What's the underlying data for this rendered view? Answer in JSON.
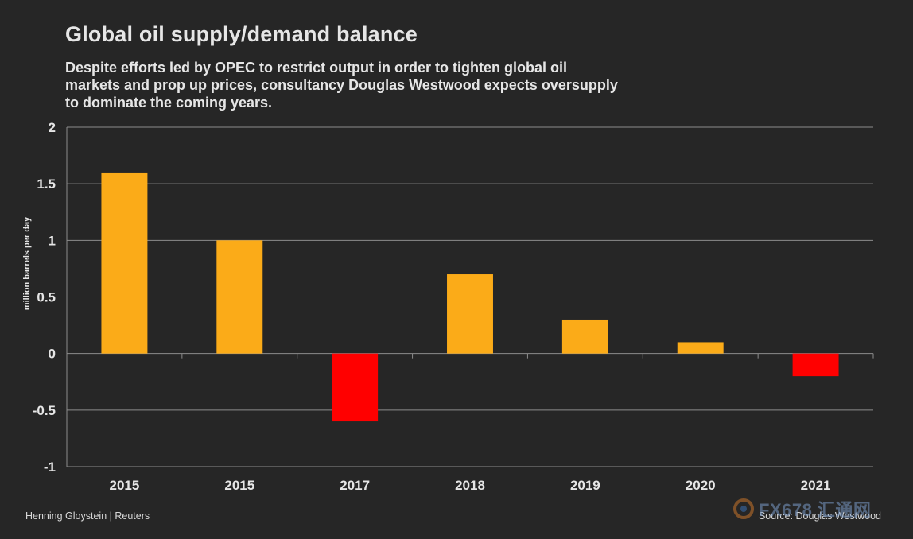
{
  "header": {
    "title": "Global oil supply/demand balance",
    "subtitle": "Despite efforts led by OPEC to restrict output in order to tighten global oil markets and prop up prices, consultancy Douglas Westwood expects oversupply to dominate the coming years."
  },
  "footer": {
    "byline": "Henning Gloystein | Reuters",
    "source": "Source: Douglas Westwood"
  },
  "watermark": {
    "text": "FX678 汇通网"
  },
  "colors": {
    "background": "#262626",
    "positive": "#FBAB18",
    "negative": "#FF0000",
    "grid": "#8c8c8c",
    "text": "#e6e6e6"
  },
  "chart_data": {
    "type": "bar",
    "title": "Global oil supply/demand balance",
    "xlabel": "",
    "ylabel": "million barrels per day",
    "categories": [
      "2015",
      "2015",
      "2017",
      "2018",
      "2019",
      "2020",
      "2021"
    ],
    "values": [
      1.6,
      1.0,
      -0.6,
      0.7,
      0.3,
      0.1,
      -0.2
    ],
    "ylim": [
      -1,
      2
    ],
    "yticks": [
      2,
      1.5,
      1,
      0.5,
      0,
      -0.5,
      -1
    ],
    "ytick_labels": [
      "2",
      "1.5",
      "1",
      "0.5",
      "0",
      "-0.5",
      "-1"
    ],
    "grid": true,
    "legend": "none"
  }
}
